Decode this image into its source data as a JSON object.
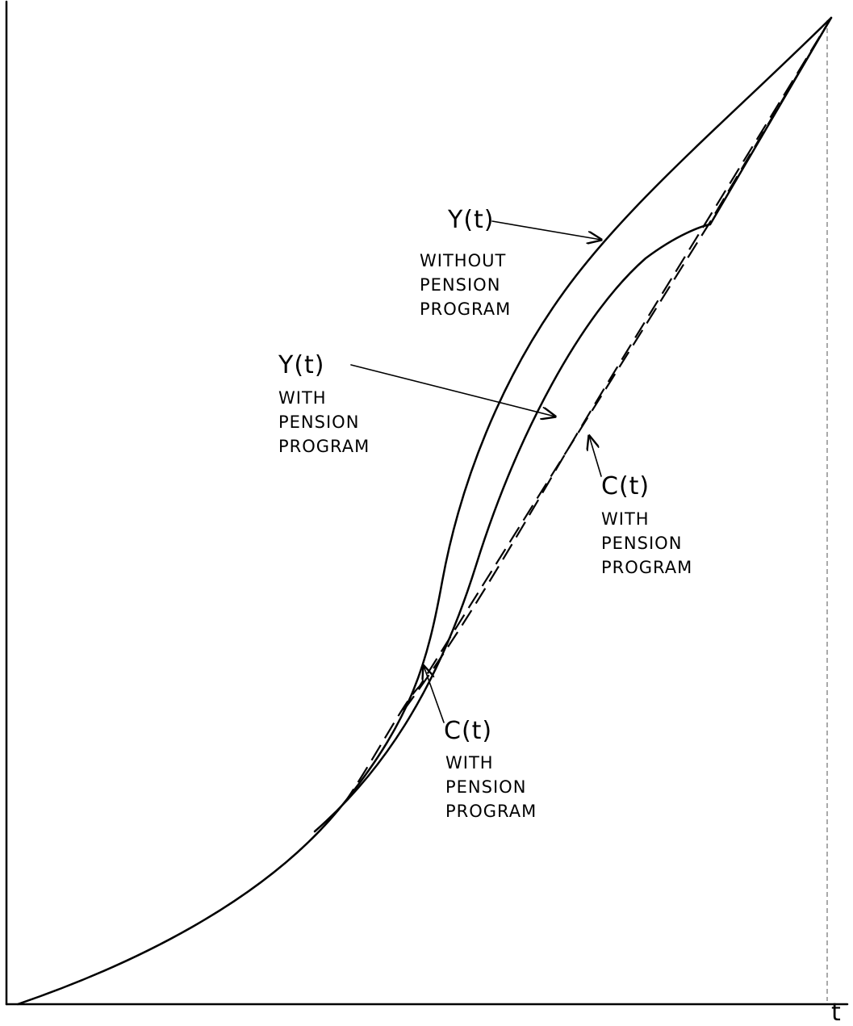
{
  "axes": {
    "x_label": "t"
  },
  "labels": [
    {
      "symbol": "Y(t)",
      "lines": [
        "WITHOUT",
        "PENSION",
        "PROGRAM"
      ]
    },
    {
      "symbol": "Y(t)",
      "lines": [
        "WITH",
        "PENSION",
        "PROGRAM"
      ]
    },
    {
      "symbol": "C(t)",
      "lines": [
        "WITH",
        "PENSION",
        "PROGRAM"
      ]
    },
    {
      "symbol": "C(t)",
      "lines": [
        "WITH",
        "PENSION",
        "PROGRAM"
      ]
    }
  ]
}
